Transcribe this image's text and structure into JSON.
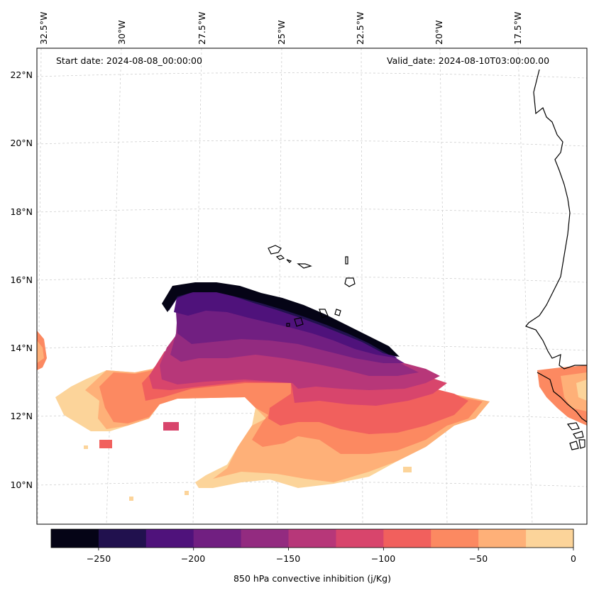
{
  "map": {
    "start_date_label": "Start date: 2024-08-08_00:00:00",
    "valid_date_label": "Valid_date: 2024-08-10T03:00:00.00",
    "lon_ticks": [
      "32.5°W",
      "30°W",
      "27.5°W",
      "25°W",
      "22.5°W",
      "20°W",
      "17.5°W"
    ],
    "lat_ticks": [
      "22°N",
      "20°N",
      "18°N",
      "16°N",
      "14°N",
      "12°N",
      "10°N"
    ]
  },
  "colorbar": {
    "label": "850 hPa convective inhibition (j/Kg)",
    "tick_labels": [
      "−250",
      "−200",
      "−150",
      "−100",
      "−50",
      "0"
    ],
    "levels": [
      -275,
      -250,
      -225,
      -200,
      -175,
      -150,
      -125,
      -100,
      -75,
      -50,
      -25,
      0
    ],
    "colors": [
      "#050416",
      "#21114e",
      "#4f127b",
      "#711f81",
      "#932b80",
      "#b73779",
      "#d8456c",
      "#f1605d",
      "#fc8961",
      "#feb078",
      "#fcd49a"
    ]
  }
}
